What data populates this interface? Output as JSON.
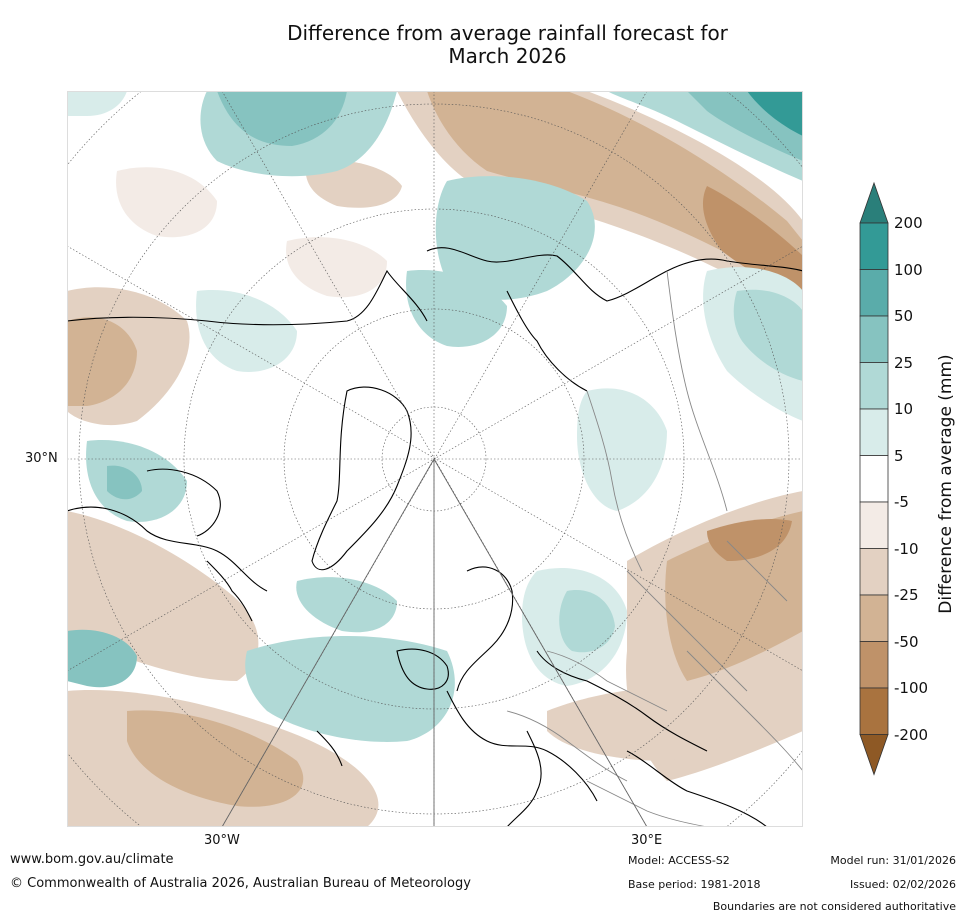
{
  "title_line1": "Difference from average rainfall forecast for",
  "title_line2": "March 2026",
  "map": {
    "projection": "north-polar-stereographic",
    "lat_label": "30°N",
    "lon_labels": {
      "west": "30°W",
      "east": "30°E"
    }
  },
  "colorbar": {
    "title": "Difference from average (mm)",
    "labels": [
      "200",
      "100",
      "50",
      "25",
      "10",
      "5",
      "-5",
      "-10",
      "-25",
      "-50",
      "-100",
      "-200"
    ],
    "colors": [
      "#2a7f7a",
      "#339a96",
      "#5aacaa",
      "#86c3c0",
      "#b0d9d6",
      "#d8ecea",
      "#ffffff",
      "#f3ebe6",
      "#e3d1c2",
      "#d2b394",
      "#bf9269",
      "#a9733f",
      "#8e5925"
    ]
  },
  "footer": {
    "url": "www.bom.gov.au/climate",
    "copyright": "© Commonwealth of Australia 2026, Australian Bureau of Meteorology",
    "model": "Model: ACCESS-S2",
    "base_period": "Base period: 1981-2018",
    "model_run": "Model run: 31/01/2026",
    "issued": "Issued: 02/02/2026",
    "disclaimer": "Boundaries are not considered authoritative"
  }
}
